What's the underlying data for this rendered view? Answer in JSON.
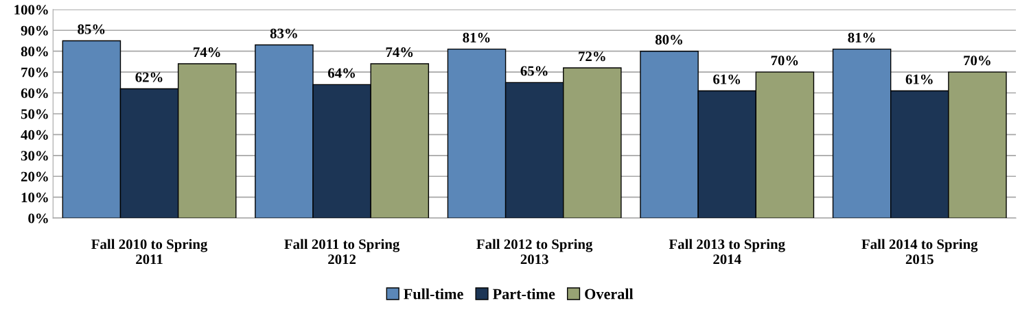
{
  "chart_data": {
    "type": "bar",
    "categories": [
      "Fall 2010 to Spring 2011",
      "Fall 2011 to Spring 2012",
      "Fall 2012 to Spring 2013",
      "Fall 2013 to Spring 2014",
      "Fall 2014 to Spring 2015"
    ],
    "series": [
      {
        "name": "Full-time",
        "color": "#5b87b8",
        "values": [
          85,
          83,
          81,
          80,
          81
        ],
        "value_labels": [
          "85%",
          "83%",
          "81%",
          "80%",
          "81%"
        ]
      },
      {
        "name": "Part-time",
        "color": "#1c3555",
        "values": [
          62,
          64,
          65,
          61,
          61
        ],
        "value_labels": [
          "62%",
          "64%",
          "65%",
          "61%",
          "61%"
        ]
      },
      {
        "name": "Overall",
        "color": "#98a274",
        "values": [
          74,
          74,
          72,
          70,
          70
        ],
        "value_labels": [
          "74%",
          "74%",
          "72%",
          "70%",
          "70%"
        ]
      }
    ],
    "ylim": [
      0,
      100
    ],
    "yticks": [
      {
        "value": 0,
        "label": "0%"
      },
      {
        "value": 10,
        "label": "10%"
      },
      {
        "value": 20,
        "label": "20%"
      },
      {
        "value": 30,
        "label": "30%"
      },
      {
        "value": 40,
        "label": "40%"
      },
      {
        "value": 50,
        "label": "50%"
      },
      {
        "value": 60,
        "label": "60%"
      },
      {
        "value": 70,
        "label": "70%"
      },
      {
        "value": 80,
        "label": "80%"
      },
      {
        "value": 90,
        "label": "90%"
      },
      {
        "value": 100,
        "label": "100%"
      }
    ],
    "grid": "y",
    "legend": "bottom"
  }
}
